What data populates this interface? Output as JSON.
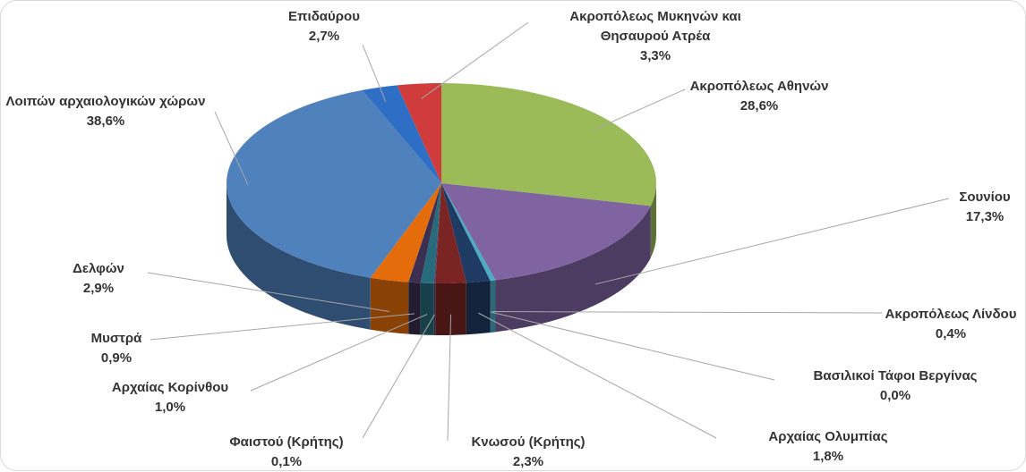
{
  "chart_data": {
    "type": "pie",
    "categories": [
      "Ακροπόλεως Αθηνών",
      "Σουνίου",
      "Ακροπόλεως Λίνδου",
      "Βασιλικοί Τάφοι Βεργίνας",
      "Αρχαίας Ολυμπίας",
      "Κνωσού (Κρήτης)",
      "Φαιστού (Κρήτης)",
      "Αρχαίας Κορίνθου",
      "Μυστρά",
      "Δελφών",
      "Λοιπών αρχαιολογικών χώρων",
      "Επιδαύρου",
      "Ακροπόλεως Μυκηνών και Θησαυρού Ατρέα"
    ],
    "values": [
      28.6,
      17.3,
      0.4,
      0.0,
      1.8,
      2.3,
      0.1,
      1.0,
      0.9,
      2.9,
      38.6,
      2.7,
      3.3
    ],
    "value_labels": [
      "28,6%",
      "17,3%",
      "0,4%",
      "0,0%",
      "1,8%",
      "2,3%",
      "0,1%",
      "1,0%",
      "0,9%",
      "2,9%",
      "38,6%",
      "2,7%",
      "3,3%"
    ],
    "colors": [
      "#9bbb59",
      "#8064a2",
      "#4bacc6",
      "#f79646",
      "#1f3a63",
      "#7a2424",
      "#4d3b62",
      "#276a7c",
      "#3b2f52",
      "#e46c0a",
      "#4f81bd",
      "#2e6ec4",
      "#d03b3b"
    ]
  }
}
